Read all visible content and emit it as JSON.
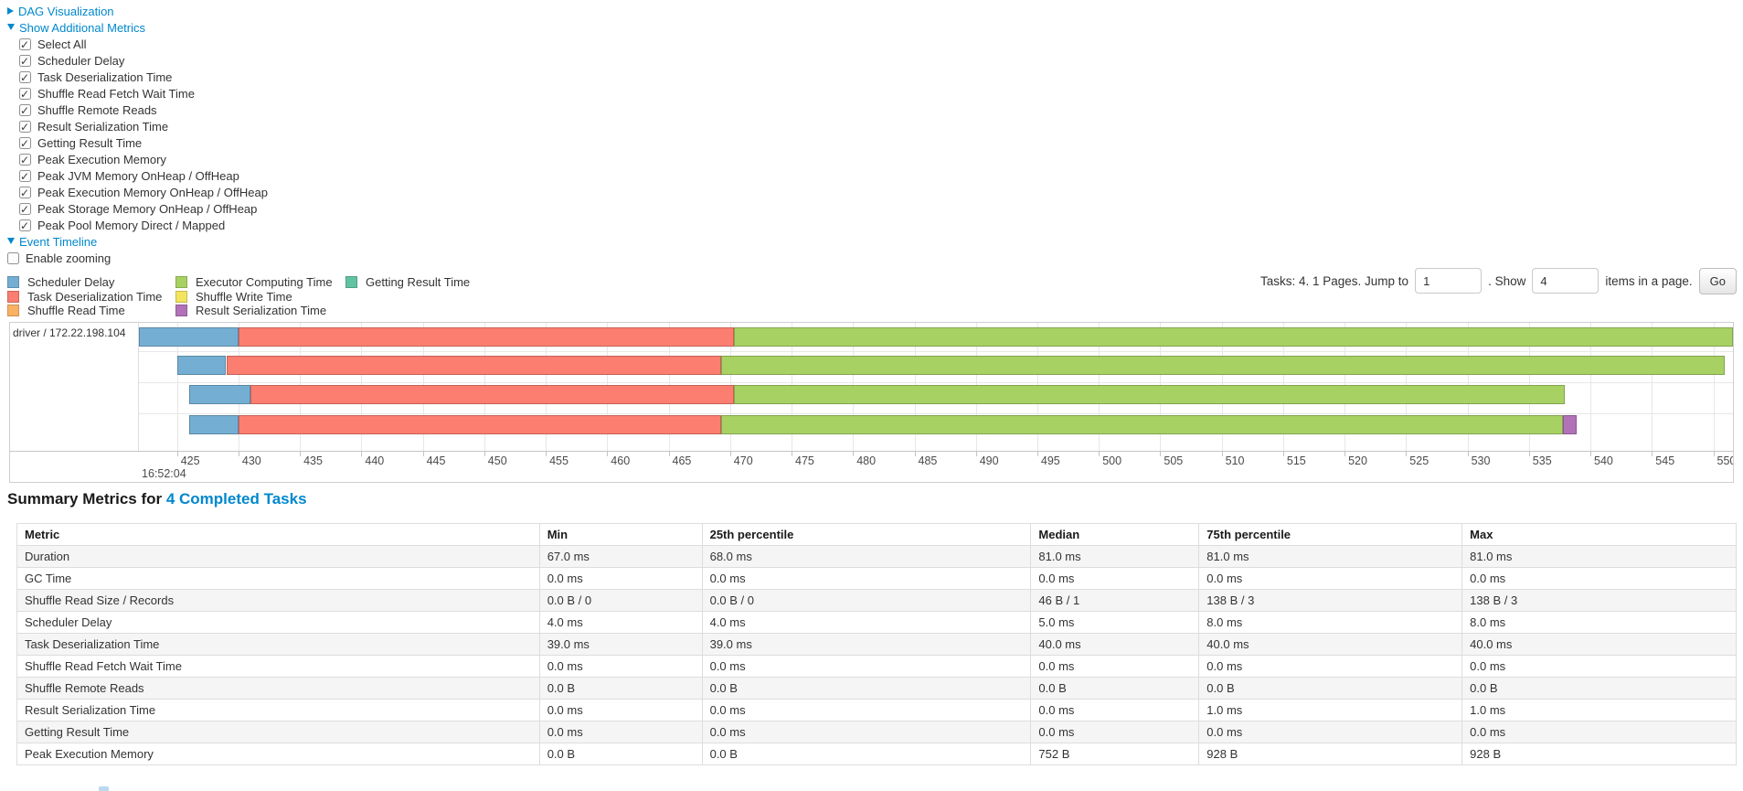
{
  "colors": {
    "link": "#0088cc",
    "scheduler_delay": "#74AFD3",
    "task_deserialization": "#FB7E70",
    "shuffle_read": "#FAB164",
    "executor_computing": "#A8D164",
    "shuffle_write": "#F3E45F",
    "result_serialization": "#B172B8",
    "getting_result": "#62C2A4"
  },
  "sections": {
    "dag": {
      "label": "DAG Visualization",
      "collapsed": true
    },
    "metrics": {
      "label": "Show Additional Metrics",
      "items": [
        {
          "label": "Select All",
          "checked": true
        },
        {
          "label": "Scheduler Delay",
          "checked": true
        },
        {
          "label": "Task Deserialization Time",
          "checked": true
        },
        {
          "label": "Shuffle Read Fetch Wait Time",
          "checked": true
        },
        {
          "label": "Shuffle Remote Reads",
          "checked": true
        },
        {
          "label": "Result Serialization Time",
          "checked": true
        },
        {
          "label": "Getting Result Time",
          "checked": true
        },
        {
          "label": "Peak Execution Memory",
          "checked": true
        },
        {
          "label": "Peak JVM Memory OnHeap / OffHeap",
          "checked": true
        },
        {
          "label": "Peak Execution Memory OnHeap / OffHeap",
          "checked": true
        },
        {
          "label": "Peak Storage Memory OnHeap / OffHeap",
          "checked": true
        },
        {
          "label": "Peak Pool Memory Direct / Mapped",
          "checked": true
        }
      ]
    },
    "timeline": {
      "label": "Event Timeline",
      "enable_zooming": "Enable zooming",
      "enable_zooming_checked": false
    }
  },
  "legend": {
    "columns": [
      [
        {
          "key": "scheduler_delay",
          "label": "Scheduler Delay"
        },
        {
          "key": "task_deserialization",
          "label": "Task Deserialization Time"
        },
        {
          "key": "shuffle_read",
          "label": "Shuffle Read Time"
        }
      ],
      [
        {
          "key": "executor_computing",
          "label": "Executor Computing Time"
        },
        {
          "key": "shuffle_write",
          "label": "Shuffle Write Time"
        },
        {
          "key": "result_serialization",
          "label": "Result Serialization Time"
        }
      ],
      [
        {
          "key": "getting_result",
          "label": "Getting Result Time"
        }
      ]
    ]
  },
  "pagination": {
    "prefix": "Tasks: 4. 1 Pages. Jump to",
    "jump_value": "1",
    "mid": ". Show",
    "show_value": "4",
    "suffix": "items in a page.",
    "go": "Go"
  },
  "chart_data": {
    "type": "timeline",
    "group_label": "driver / 172.22.198.104",
    "axis": {
      "min": 421.9,
      "max": 551.6,
      "tick_start": 425,
      "tick_end": 550,
      "tick_step": 5,
      "minor_unit": "ms-of-second",
      "major_label": "16:52:04"
    },
    "tasks": [
      {
        "row": 0,
        "start": 421.9,
        "segments": [
          {
            "type": "scheduler_delay",
            "end": 430.0
          },
          {
            "type": "task_deserialization",
            "end": 470.3
          },
          {
            "type": "executor_computing",
            "end": 551.6
          }
        ]
      },
      {
        "row": 1,
        "start": 425.0,
        "segments": [
          {
            "type": "scheduler_delay",
            "end": 429.0
          },
          {
            "type": "task_deserialization",
            "end": 469.3
          },
          {
            "type": "executor_computing",
            "end": 550.9
          }
        ]
      },
      {
        "row": 2,
        "start": 426.0,
        "segments": [
          {
            "type": "scheduler_delay",
            "end": 431.0
          },
          {
            "type": "task_deserialization",
            "end": 470.3
          },
          {
            "type": "executor_computing",
            "end": 537.9
          }
        ]
      },
      {
        "row": 3,
        "start": 426.0,
        "segments": [
          {
            "type": "scheduler_delay",
            "end": 430.0
          },
          {
            "type": "task_deserialization",
            "end": 469.3
          },
          {
            "type": "executor_computing",
            "end": 537.8
          },
          {
            "type": "result_serialization",
            "end": 538.9
          }
        ]
      }
    ]
  },
  "summary": {
    "heading_prefix": "Summary Metrics for ",
    "heading_link": "4 Completed Tasks",
    "columns": [
      "Metric",
      "Min",
      "25th percentile",
      "Median",
      "75th percentile",
      "Max"
    ],
    "rows": [
      [
        "Duration",
        "67.0 ms",
        "68.0 ms",
        "81.0 ms",
        "81.0 ms",
        "81.0 ms"
      ],
      [
        "GC Time",
        "0.0 ms",
        "0.0 ms",
        "0.0 ms",
        "0.0 ms",
        "0.0 ms"
      ],
      [
        "Shuffle Read Size / Records",
        "0.0 B / 0",
        "0.0 B / 0",
        "46 B / 1",
        "138 B / 3",
        "138 B / 3"
      ],
      [
        "Scheduler Delay",
        "4.0 ms",
        "4.0 ms",
        "5.0 ms",
        "8.0 ms",
        "8.0 ms"
      ],
      [
        "Task Deserialization Time",
        "39.0 ms",
        "39.0 ms",
        "40.0 ms",
        "40.0 ms",
        "40.0 ms"
      ],
      [
        "Shuffle Read Fetch Wait Time",
        "0.0 ms",
        "0.0 ms",
        "0.0 ms",
        "0.0 ms",
        "0.0 ms"
      ],
      [
        "Shuffle Remote Reads",
        "0.0 B",
        "0.0 B",
        "0.0 B",
        "0.0 B",
        "0.0 B"
      ],
      [
        "Result Serialization Time",
        "0.0 ms",
        "0.0 ms",
        "0.0 ms",
        "1.0 ms",
        "1.0 ms"
      ],
      [
        "Getting Result Time",
        "0.0 ms",
        "0.0 ms",
        "0.0 ms",
        "0.0 ms",
        "0.0 ms"
      ],
      [
        "Peak Execution Memory",
        "0.0 B",
        "0.0 B",
        "752 B",
        "928 B",
        "928 B"
      ]
    ]
  }
}
